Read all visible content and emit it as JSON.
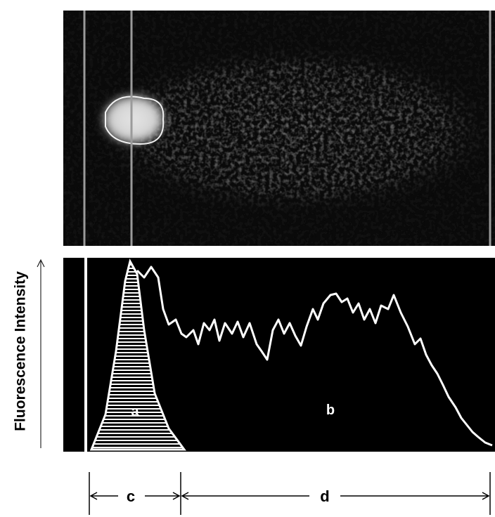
{
  "y_axis_label": "Fluorescence Intensity",
  "regions": {
    "a": "a",
    "b": "b"
  },
  "segments": {
    "c": "c",
    "d": "d"
  }
}
